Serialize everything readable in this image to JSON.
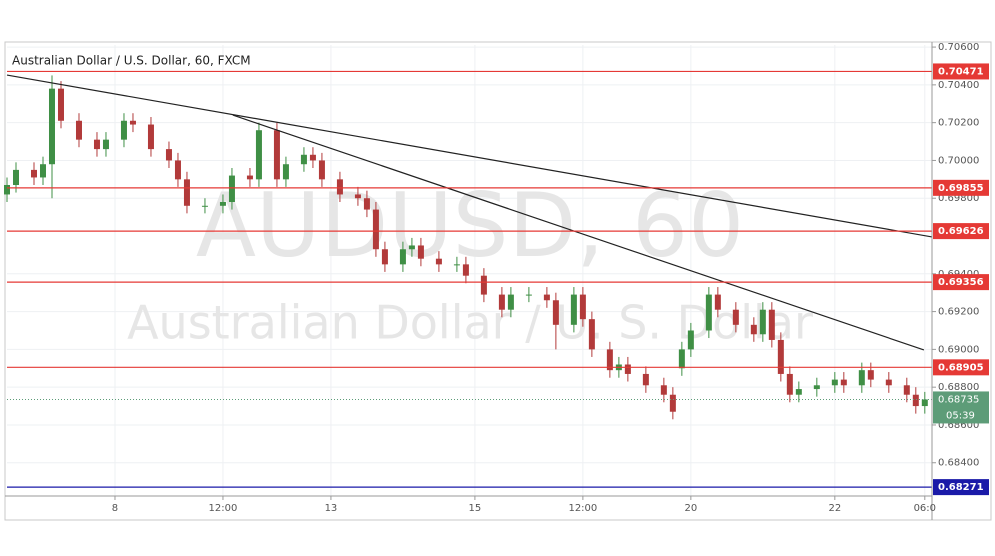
{
  "chart_data": {
    "type": "candlestick",
    "title": "Australian Dollar / U.S. Dollar, 60, FXCM",
    "watermark": "AUDUSD, 60",
    "watermark_sub": "Australian Dollar / U. S. Dollar",
    "x": [
      0,
      1,
      3,
      4,
      5,
      6,
      8,
      10,
      11,
      13,
      14,
      16,
      18,
      19,
      20,
      22,
      24,
      25,
      27,
      28,
      30,
      31,
      33,
      34,
      35,
      37,
      39,
      40,
      41,
      42,
      44,
      45,
      46,
      48,
      50,
      51,
      53,
      55,
      56,
      58,
      60,
      61,
      63,
      64,
      65,
      67,
      68,
      69,
      71,
      73,
      74,
      75,
      76,
      78,
      79,
      81,
      83,
      84,
      85,
      86,
      87,
      88,
      90,
      92,
      93,
      95,
      96,
      98,
      100,
      101,
      102
    ],
    "open": [
      0.6982,
      0.6987,
      0.6995,
      0.6991,
      0.6998,
      0.7038,
      0.7021,
      0.7011,
      0.7006,
      0.7011,
      0.7021,
      0.7019,
      0.7006,
      0.7,
      0.699,
      0.6976,
      0.6976,
      0.6978,
      0.6992,
      0.699,
      0.7016,
      0.699,
      0.6998,
      0.7003,
      0.7,
      0.699,
      0.6982,
      0.698,
      0.6974,
      0.6953,
      0.6945,
      0.6953,
      0.6955,
      0.6948,
      0.6945,
      0.6945,
      0.6939,
      0.6929,
      0.6921,
      0.6929,
      0.6929,
      0.6926,
      0.6913,
      0.6929,
      0.6916,
      0.69,
      0.6889,
      0.6892,
      0.6887,
      0.6881,
      0.6876,
      0.689,
      0.69,
      0.691,
      0.6929,
      0.6921,
      0.6913,
      0.6908,
      0.6921,
      0.6905,
      0.6887,
      0.6876,
      0.6879,
      0.6881,
      0.6884,
      0.6881,
      0.6889,
      0.6884,
      0.6881,
      0.6876,
      0.687
    ],
    "high": [
      0.6991,
      0.6999,
      0.6999,
      0.7002,
      0.7045,
      0.7042,
      0.7025,
      0.7015,
      0.7015,
      0.7025,
      0.7025,
      0.7023,
      0.701,
      0.7004,
      0.6994,
      0.698,
      0.6982,
      0.6996,
      0.6996,
      0.702,
      0.702,
      0.7002,
      0.7007,
      0.7007,
      0.7004,
      0.6994,
      0.6986,
      0.6984,
      0.6978,
      0.6957,
      0.6957,
      0.6959,
      0.6959,
      0.6952,
      0.6949,
      0.6949,
      0.6943,
      0.6933,
      0.6933,
      0.6933,
      0.6933,
      0.693,
      0.6933,
      0.6933,
      0.692,
      0.6904,
      0.6896,
      0.6896,
      0.6891,
      0.6885,
      0.688,
      0.6904,
      0.6914,
      0.6933,
      0.6933,
      0.6925,
      0.6917,
      0.6925,
      0.6925,
      0.6909,
      0.6891,
      0.6883,
      0.6885,
      0.6888,
      0.6888,
      0.6893,
      0.6893,
      0.6888,
      0.6885,
      0.688,
      0.68775
    ],
    "low": [
      0.6978,
      0.6983,
      0.6987,
      0.6987,
      0.698,
      0.7017,
      0.7007,
      0.7002,
      0.7002,
      0.7007,
      0.7015,
      0.7002,
      0.6996,
      0.6986,
      0.6972,
      0.6972,
      0.6972,
      0.6974,
      0.6986,
      0.6986,
      0.6986,
      0.6986,
      0.6994,
      0.6996,
      0.6986,
      0.6978,
      0.6976,
      0.697,
      0.6949,
      0.6941,
      0.6941,
      0.6949,
      0.6944,
      0.6941,
      0.6941,
      0.6935,
      0.6925,
      0.6917,
      0.6917,
      0.6925,
      0.6922,
      0.69,
      0.6909,
      0.6912,
      0.6896,
      0.6885,
      0.6885,
      0.6883,
      0.6877,
      0.6872,
      0.6863,
      0.6886,
      0.6896,
      0.6906,
      0.6917,
      0.6909,
      0.6904,
      0.6904,
      0.6901,
      0.6883,
      0.6872,
      0.6872,
      0.6875,
      0.6877,
      0.6877,
      0.6877,
      0.688,
      0.6877,
      0.6872,
      0.6866,
      0.6866
    ],
    "close": [
      0.6987,
      0.6995,
      0.6991,
      0.6998,
      0.7038,
      0.7021,
      0.7011,
      0.7006,
      0.7011,
      0.7021,
      0.7019,
      0.7006,
      0.7,
      0.699,
      0.6976,
      0.6976,
      0.6978,
      0.6992,
      0.699,
      0.7016,
      0.699,
      0.6998,
      0.7003,
      0.7,
      0.699,
      0.6982,
      0.698,
      0.6974,
      0.6953,
      0.6945,
      0.6953,
      0.6955,
      0.6948,
      0.6945,
      0.6945,
      0.6939,
      0.6929,
      0.6921,
      0.6929,
      0.6929,
      0.6926,
      0.6913,
      0.6929,
      0.6916,
      0.69,
      0.6889,
      0.6892,
      0.6887,
      0.6881,
      0.6876,
      0.6867,
      0.69,
      0.691,
      0.6929,
      0.6921,
      0.6913,
      0.6908,
      0.6921,
      0.6905,
      0.6887,
      0.6876,
      0.6879,
      0.6881,
      0.6884,
      0.6881,
      0.6889,
      0.6884,
      0.6881,
      0.6876,
      0.687,
      0.68735
    ],
    "up_color": "#3f8f45",
    "down_color": "#b23a3a",
    "xlim": [
      0,
      102.8
    ],
    "ylim": [
      0.68224,
      0.70611
    ],
    "xticks": [
      {
        "value": 12,
        "label": "8"
      },
      {
        "value": 24,
        "label": "12:00"
      },
      {
        "value": 36,
        "label": "13"
      },
      {
        "value": 52,
        "label": "15"
      },
      {
        "value": 64,
        "label": "12:00"
      },
      {
        "value": 76,
        "label": "20"
      },
      {
        "value": 92,
        "label": "22"
      },
      {
        "value": 102,
        "label": "06:0"
      }
    ],
    "yticks": [
      {
        "value": 0.706,
        "label": "0.70600"
      },
      {
        "value": 0.704,
        "label": "0.70400"
      },
      {
        "value": 0.702,
        "label": "0.70200"
      },
      {
        "value": 0.7,
        "label": "0.70000"
      },
      {
        "value": 0.698,
        "label": "0.69800"
      },
      {
        "value": 0.694,
        "label": "0.69400"
      },
      {
        "value": 0.692,
        "label": "0.69200"
      },
      {
        "value": 0.69,
        "label": "0.69000"
      },
      {
        "value": 0.688,
        "label": "0.68800"
      },
      {
        "value": 0.686,
        "label": "0.68600"
      },
      {
        "value": 0.684,
        "label": "0.68400"
      }
    ],
    "grid": true,
    "levels": [
      0.70471,
      0.69855,
      0.69626,
      0.69356,
      0.68905,
      0.68271
    ],
    "level_colors": [
      "#e53935",
      "#e53935",
      "#e53935",
      "#e53935",
      "#e53935",
      "#1a1aa8"
    ],
    "last_price": 0.68735,
    "last_color": "#5d9c78",
    "countdown": "05:39",
    "trendlines": [
      {
        "x": [
          0,
          102.8
        ],
        "y": [
          0.70452,
          0.69595
        ]
      },
      {
        "x": [
          25.1,
          101.9
        ],
        "y": [
          0.7024,
          0.68997
        ]
      }
    ]
  }
}
